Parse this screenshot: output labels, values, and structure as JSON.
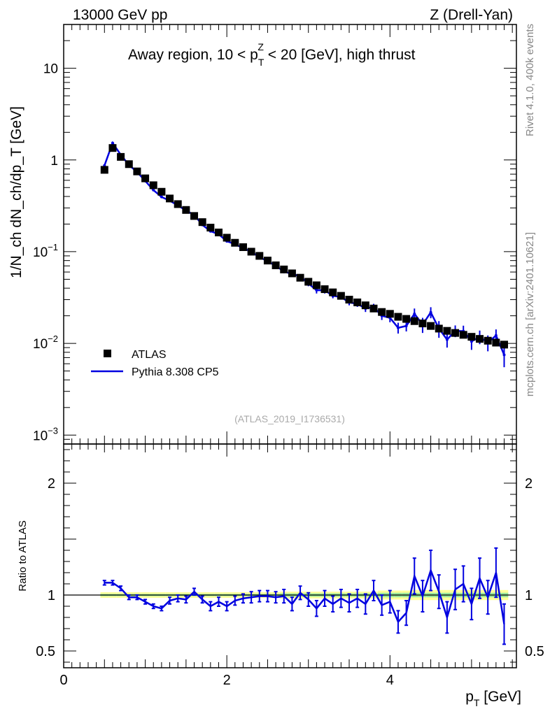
{
  "header": {
    "left": "13000 GeV pp",
    "right": "Z (Drell-Yan)"
  },
  "side_labels": {
    "rivet": "Rivet 4.1.0,  400k events",
    "mcplots": "mcplots.cern.ch [arXiv:2401.10621]"
  },
  "colors": {
    "data": "#000000",
    "mc": "#0000e0",
    "band_outer": "#ffff99",
    "band_inner": "#99e699"
  },
  "chart_data": [
    {
      "type": "scatter",
      "title": "Away region, 10 < p_T^Z < 20 [GeV], high thrust",
      "title_parts": {
        "prefix": "Away region, 10 < p",
        "sup": "Z",
        "sub": "T",
        "suffix": " < 20 [GeV], high thrust"
      },
      "ylabel": "1/N_ch dN_ch/dp_T [GeV]",
      "yscale": "log",
      "ylim": [
        0.0008,
        30
      ],
      "xlim": [
        0,
        5.55
      ],
      "yticks": [
        {
          "value": 10,
          "label": "10"
        },
        {
          "value": 1,
          "label": "1"
        },
        {
          "value": 0.1,
          "base": "10",
          "exp": "−1"
        },
        {
          "value": 0.01,
          "base": "10",
          "exp": "−2"
        },
        {
          "value": 0.001,
          "base": "10",
          "exp": "−3"
        }
      ],
      "watermark": "(ATLAS_2019_I1736531)",
      "legend": [
        {
          "name": "ATLAS",
          "style": "marker"
        },
        {
          "name": "Pythia 8.308 CP5",
          "style": "line"
        }
      ],
      "x": [
        0.5,
        0.6,
        0.7,
        0.8,
        0.9,
        1.0,
        1.1,
        1.2,
        1.3,
        1.4,
        1.5,
        1.6,
        1.7,
        1.8,
        1.9,
        2.0,
        2.1,
        2.2,
        2.3,
        2.4,
        2.5,
        2.6,
        2.7,
        2.8,
        2.9,
        3.0,
        3.1,
        3.2,
        3.3,
        3.4,
        3.5,
        3.6,
        3.7,
        3.8,
        3.9,
        4.0,
        4.1,
        4.2,
        4.3,
        4.4,
        4.5,
        4.6,
        4.7,
        4.8,
        4.9,
        5.0,
        5.1,
        5.2,
        5.3,
        5.4
      ],
      "series": [
        {
          "name": "ATLAS",
          "values": [
            0.78,
            1.35,
            1.08,
            0.9,
            0.75,
            0.63,
            0.53,
            0.45,
            0.38,
            0.33,
            0.285,
            0.245,
            0.21,
            0.183,
            0.162,
            0.142,
            0.125,
            0.112,
            0.1,
            0.09,
            0.08,
            0.071,
            0.064,
            0.058,
            0.052,
            0.047,
            0.043,
            0.039,
            0.036,
            0.033,
            0.03,
            0.028,
            0.026,
            0.024,
            0.022,
            0.021,
            0.0195,
            0.0185,
            0.0175,
            0.0165,
            0.0155,
            0.0145,
            0.0137,
            0.013,
            0.0124,
            0.0118,
            0.0112,
            0.0107,
            0.0102,
            0.0097
          ]
        },
        {
          "name": "Pythia 8.308 CP5",
          "values": [
            0.87,
            1.53,
            1.14,
            0.88,
            0.74,
            0.59,
            0.47,
            0.395,
            0.36,
            0.32,
            0.28,
            0.252,
            0.196,
            0.167,
            0.155,
            0.13,
            0.121,
            0.109,
            0.1,
            0.087,
            0.079,
            0.07,
            0.061,
            0.057,
            0.054,
            0.045,
            0.038,
            0.038,
            0.033,
            0.032,
            0.028,
            0.027,
            0.024,
            0.025,
            0.02,
            0.019,
            0.0148,
            0.0155,
            0.021,
            0.016,
            0.0218,
            0.0145,
            0.011,
            0.0137,
            0.0136,
            0.0105,
            0.0118,
            0.0102,
            0.0122,
            0.0075
          ],
          "errors": [
            0.02,
            0.04,
            0.03,
            0.02,
            0.02,
            0.015,
            0.012,
            0.01,
            0.008,
            0.008,
            0.007,
            0.006,
            0.005,
            0.004,
            0.004,
            0.004,
            0.004,
            0.003,
            0.003,
            0.003,
            0.003,
            0.003,
            0.003,
            0.003,
            0.003,
            0.003,
            0.003,
            0.003,
            0.002,
            0.002,
            0.002,
            0.002,
            0.002,
            0.002,
            0.002,
            0.002,
            0.002,
            0.002,
            0.003,
            0.003,
            0.003,
            0.003,
            0.002,
            0.002,
            0.002,
            0.002,
            0.002,
            0.002,
            0.002,
            0.002
          ]
        }
      ]
    },
    {
      "type": "line",
      "ylabel": "Ratio to ATLAS",
      "xlabel": "p_T [GeV]",
      "ylim": [
        0.35,
        2.35
      ],
      "xlim": [
        0,
        5.55
      ],
      "yticks": [
        {
          "value": 2,
          "label": "2"
        },
        {
          "value": 1,
          "label": "1"
        },
        {
          "value": 0.5,
          "label": "0.5"
        }
      ],
      "xticks": [
        {
          "value": 0,
          "label": "0"
        },
        {
          "value": 2,
          "label": "2"
        },
        {
          "value": 4,
          "label": "4"
        }
      ],
      "reference": 1,
      "band_inner_halfwidth": [
        0.01,
        0.01,
        0.01,
        0.01,
        0.01,
        0.01,
        0.01,
        0.01,
        0.01,
        0.01,
        0.01,
        0.01,
        0.01,
        0.01,
        0.01,
        0.01,
        0.01,
        0.01,
        0.01,
        0.01,
        0.01,
        0.01,
        0.015,
        0.015,
        0.015,
        0.015,
        0.015,
        0.015,
        0.015,
        0.015,
        0.015,
        0.015,
        0.015,
        0.015,
        0.02,
        0.02,
        0.02,
        0.02,
        0.02,
        0.02,
        0.02,
        0.02,
        0.02,
        0.02,
        0.02,
        0.02,
        0.02,
        0.02,
        0.02,
        0.02
      ],
      "band_outer_halfwidth": [
        0.025,
        0.025,
        0.025,
        0.025,
        0.025,
        0.025,
        0.025,
        0.025,
        0.025,
        0.025,
        0.025,
        0.025,
        0.025,
        0.025,
        0.025,
        0.025,
        0.025,
        0.025,
        0.025,
        0.025,
        0.025,
        0.025,
        0.03,
        0.03,
        0.03,
        0.03,
        0.03,
        0.03,
        0.03,
        0.03,
        0.03,
        0.03,
        0.03,
        0.03,
        0.04,
        0.04,
        0.04,
        0.04,
        0.045,
        0.045,
        0.045,
        0.045,
        0.045,
        0.045,
        0.045,
        0.045,
        0.045,
        0.045,
        0.045,
        0.045
      ],
      "series": [
        {
          "name": "Pythia 8.308 CP5",
          "values": [
            1.11,
            1.11,
            1.06,
            0.98,
            0.98,
            0.94,
            0.9,
            0.88,
            0.95,
            0.97,
            0.96,
            1.03,
            0.96,
            0.9,
            0.94,
            0.9,
            0.95,
            0.97,
            0.98,
            0.99,
            0.99,
            0.98,
            0.99,
            0.92,
            1.02,
            0.96,
            0.88,
            0.97,
            0.92,
            0.97,
            0.93,
            0.97,
            0.92,
            1.04,
            0.91,
            0.94,
            0.76,
            0.84,
            1.17,
            0.99,
            1.22,
            1.03,
            0.8,
            1.05,
            1.1,
            0.92,
            1.15,
            0.98,
            1.2,
            0.74
          ],
          "errors": [
            0.02,
            0.02,
            0.02,
            0.02,
            0.02,
            0.02,
            0.02,
            0.02,
            0.03,
            0.03,
            0.03,
            0.03,
            0.03,
            0.04,
            0.04,
            0.04,
            0.04,
            0.04,
            0.05,
            0.05,
            0.05,
            0.05,
            0.06,
            0.06,
            0.06,
            0.06,
            0.07,
            0.07,
            0.07,
            0.08,
            0.08,
            0.08,
            0.09,
            0.09,
            0.09,
            0.1,
            0.1,
            0.11,
            0.16,
            0.14,
            0.18,
            0.15,
            0.14,
            0.18,
            0.16,
            0.14,
            0.18,
            0.15,
            0.22,
            0.18
          ]
        }
      ]
    }
  ]
}
